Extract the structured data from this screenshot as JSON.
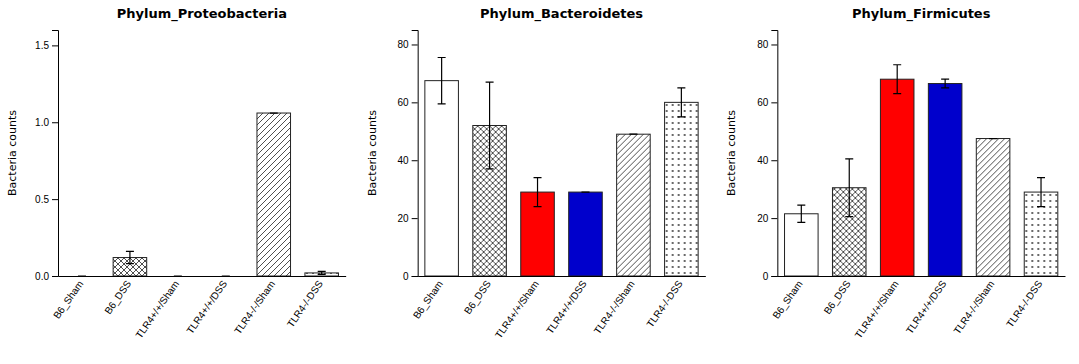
{
  "chart_data": [
    {
      "type": "bar",
      "title": "Phylum_Proteobacteria",
      "ylabel": "Bacteria counts",
      "categories": [
        "B6_Sham",
        "B6_DSS",
        "TLR4+/+/Sham",
        "TLR4+/+/DSS",
        "TLR4-/-/Sham",
        "TLR4-/-DSS"
      ],
      "values": [
        0.0,
        0.12,
        0.0,
        0.0,
        1.06,
        0.02
      ],
      "errors": [
        0.0,
        0.04,
        0.0,
        0.0,
        0.0,
        0.01
      ],
      "colors": [
        "#ffffff",
        "#ffffff",
        "#ffffff",
        "#ffffff",
        "#ffffff",
        "#ffffff"
      ],
      "ylim": [
        0,
        1.6
      ],
      "yticks": [
        {
          "value": 0.0,
          "label": "0.0"
        },
        0.5,
        {
          "value": 1.0,
          "label": "1.0"
        },
        1.5
      ],
      "grid": false
    },
    {
      "type": "bar",
      "title": "Phylum_Bacteroidetes",
      "ylabel": "Bacteria counts",
      "categories": [
        "B6_Sham",
        "B6_DSS",
        "TLR4+/+/Sham",
        "TLR4+/+/DSS",
        "TLR4-/-/Sham",
        "TLR4-/-DSS"
      ],
      "values": [
        67.5,
        52.0,
        29.0,
        29.0,
        49.0,
        60.0
      ],
      "errors": [
        8.0,
        15.0,
        5.0,
        0.0,
        0.0,
        5.0
      ],
      "colors": [
        "#ffffff",
        "#ffffff",
        "#ff0000",
        "#0000cc",
        "#ffffff",
        "#ffffff"
      ],
      "ylim": [
        0,
        85
      ],
      "yticks": [
        0,
        20,
        40,
        60,
        80
      ],
      "grid": false
    },
    {
      "type": "bar",
      "title": "Phylum_Firmicutes",
      "ylabel": "Bacteria counts",
      "categories": [
        "B6_Sham",
        "B6_DSS",
        "TLR4+/+/Sham",
        "TLR4+/+/DSS",
        "TLR4-/-/Sham",
        "TLR4-/-DSS"
      ],
      "values": [
        21.5,
        30.5,
        68.0,
        66.5,
        47.5,
        29.0
      ],
      "errors": [
        3.0,
        10.0,
        5.0,
        1.5,
        0.0,
        5.0
      ],
      "colors": [
        "#ffffff",
        "#ffffff",
        "#ff0000",
        "#0000cc",
        "#ffffff",
        "#ffffff"
      ],
      "ylim": [
        0,
        85
      ],
      "yticks": [
        0,
        20,
        40,
        60,
        80
      ],
      "grid": false
    }
  ]
}
